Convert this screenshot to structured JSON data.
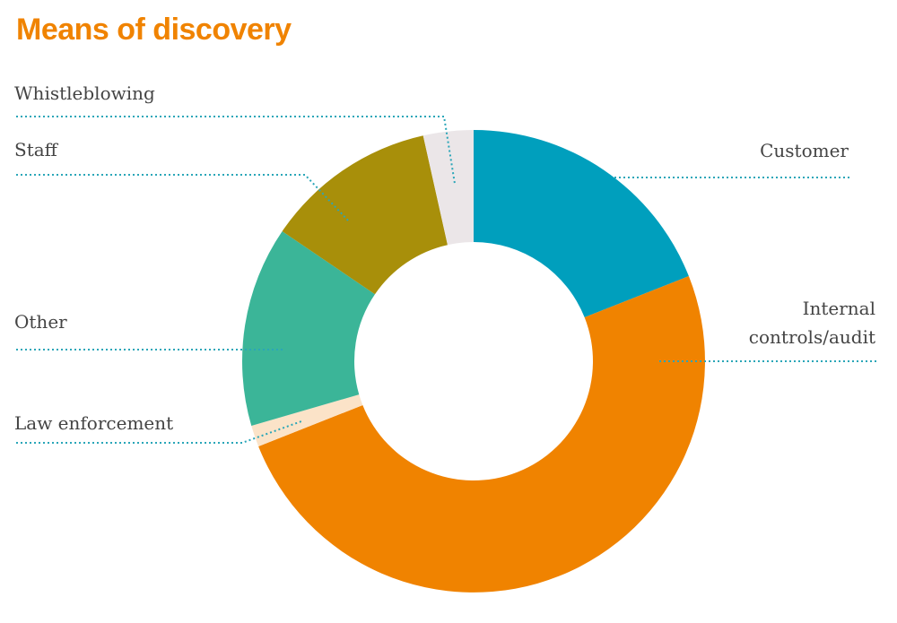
{
  "chart_data": {
    "type": "donut",
    "title": "Means of discovery",
    "categories": [
      "Customer",
      "Internal controls/audit",
      "Law enforcement",
      "Other",
      "Staff",
      "Whistleblowing"
    ],
    "values": [
      19,
      50,
      1.5,
      14,
      12,
      3.5
    ],
    "colors": [
      "#009fbd",
      "#f08300",
      "#fbe3c8",
      "#3bb598",
      "#a88f0a",
      "#ebe6e8"
    ]
  }
}
